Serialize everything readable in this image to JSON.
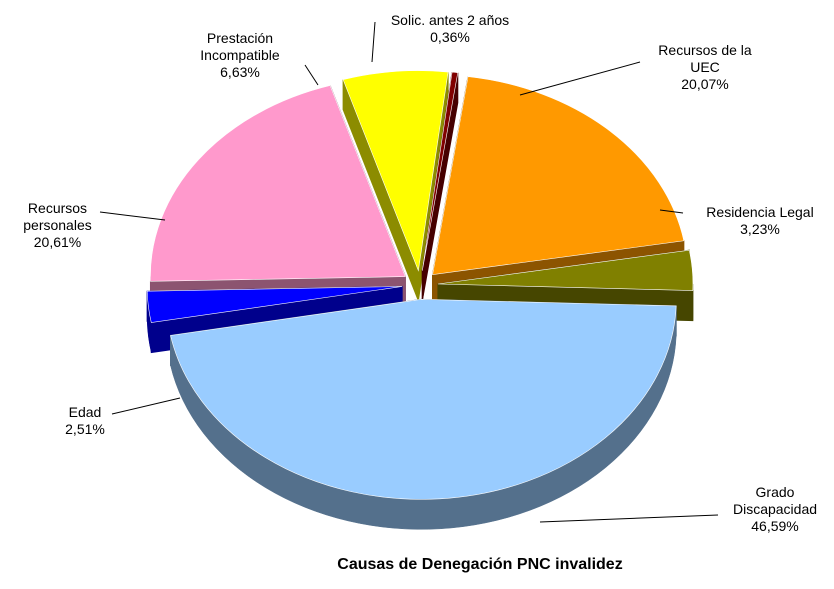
{
  "chart_data": {
    "type": "pie",
    "title": "Causas de Denegación PNC invalidez",
    "categories": [
      "Recursos de la UEC",
      "Residencia Legal",
      "Grado Discapacidad",
      "Edad",
      "Recursos personales",
      "Prestación Incompatible",
      "Solic. antes 2 años"
    ],
    "values": [
      20.07,
      3.23,
      46.59,
      2.51,
      20.61,
      6.63,
      0.36
    ],
    "value_labels": [
      "20,07%",
      "3,23%",
      "46,59%",
      "2,51%",
      "20,61%",
      "6,63%",
      "0,36%"
    ],
    "colors": [
      "#ff9900",
      "#808000",
      "#99ccff",
      "#0000ff",
      "#ff99cc",
      "#ffff00",
      "#800000"
    ]
  }
}
